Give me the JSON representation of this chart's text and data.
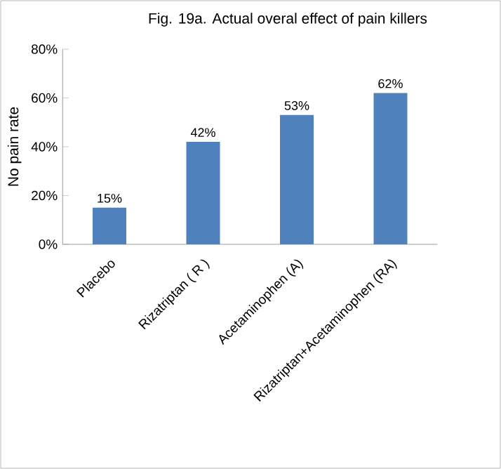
{
  "chart_data": {
    "type": "bar",
    "title": "Fig. 19a.  Actual overal effect of pain killers",
    "ylabel": "No pain rate",
    "categories": [
      "Placebo",
      "Rizatriptan ( R )",
      "Acetaminophen (A)",
      "Rizatriptan+Acetaminophen (RA)"
    ],
    "values": [
      15,
      42,
      53,
      62
    ],
    "color": "#4f81bd",
    "value_labels": [
      "15%",
      "42%",
      "53%",
      "62%"
    ],
    "ylim": [
      0,
      80
    ],
    "yticks": [
      {
        "value": 0,
        "label": "0%"
      },
      {
        "value": 20,
        "label": "20%"
      },
      {
        "value": 40,
        "label": "40%"
      },
      {
        "value": 60,
        "label": "60%"
      },
      {
        "value": 80,
        "label": "80%"
      }
    ],
    "grid": false
  }
}
